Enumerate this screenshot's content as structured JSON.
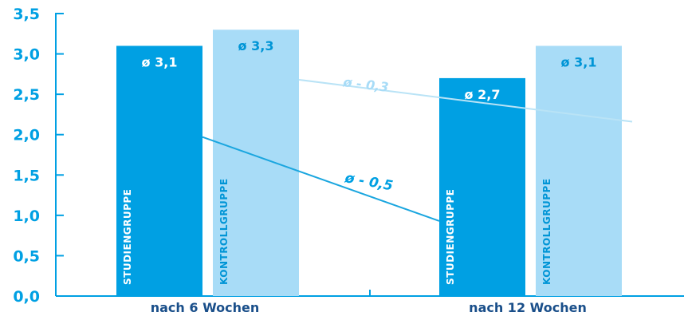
{
  "chart_data": {
    "type": "bar",
    "categories": [
      "nach 6 Wochen",
      "nach 12 Wochen"
    ],
    "series": [
      {
        "name": "STUDIENGRUPPE",
        "values": [
          3.1,
          2.7
        ],
        "labels": [
          "ø 3,1",
          "ø 2,7"
        ],
        "color": "#00a0e3"
      },
      {
        "name": "KONTROLLGRUPPE",
        "values": [
          3.3,
          3.1
        ],
        "labels": [
          "ø 3,3",
          "ø 3,1"
        ],
        "color": "#a8dcf7"
      }
    ],
    "ylim": [
      0,
      3.5
    ],
    "yticks": [
      0,
      0.5,
      1.0,
      1.5,
      2.0,
      2.5,
      3.0,
      3.5
    ],
    "ytick_labels": [
      "0,0",
      "0,5",
      "1,0",
      "1,5",
      "2,0",
      "2,5",
      "3,0",
      "3,5"
    ],
    "annotations": [
      {
        "text": "ø - 0,5",
        "series": "STUDIENGRUPPE",
        "color": "#00a0e3"
      },
      {
        "text": "ø - 0,3",
        "series": "KONTROLLGRUPPE",
        "color": "#a8dcf7"
      }
    ],
    "colors": {
      "axis": "#00a0e3",
      "bar_label": "#ffffff"
    }
  }
}
